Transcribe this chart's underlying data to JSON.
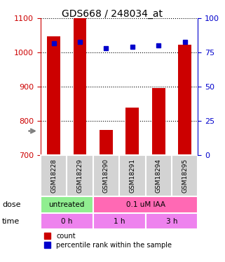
{
  "title": "GDS668 / 248034_at",
  "samples": [
    "GSM18228",
    "GSM18229",
    "GSM18290",
    "GSM18291",
    "GSM18294",
    "GSM18295"
  ],
  "count_values": [
    1047,
    1100,
    775,
    840,
    897,
    1022
  ],
  "percentile_values": [
    82,
    83,
    78,
    79,
    80,
    83
  ],
  "ylim_left": [
    700,
    1100
  ],
  "ylim_right": [
    0,
    100
  ],
  "yticks_left": [
    700,
    800,
    900,
    1000,
    1100
  ],
  "yticks_right": [
    0,
    25,
    50,
    75,
    100
  ],
  "bar_color": "#cc0000",
  "dot_color": "#0000cc",
  "grid_color": "#000000",
  "dose_labels": [
    {
      "label": "untreated",
      "span": [
        0,
        2
      ],
      "color": "#90ee90"
    },
    {
      "label": "0.1 uM IAA",
      "span": [
        2,
        6
      ],
      "color": "#ff69b4"
    }
  ],
  "time_labels": [
    {
      "label": "0 h",
      "span": [
        0,
        2
      ],
      "color": "#ee82ee"
    },
    {
      "label": "1 h",
      "span": [
        2,
        4
      ],
      "color": "#ee82ee"
    },
    {
      "label": "3 h",
      "span": [
        4,
        6
      ],
      "color": "#ee82ee"
    }
  ],
  "dose_row_label": "dose",
  "time_row_label": "time",
  "legend_count_label": "count",
  "legend_percentile_label": "percentile rank within the sample",
  "label_color_left": "#cc0000",
  "label_color_right": "#0000cc",
  "tick_color_left": "#cc0000",
  "tick_color_right": "#0000cc",
  "background_color": "#ffffff",
  "plot_bg_color": "#ffffff",
  "sample_box_color": "#d3d3d3"
}
